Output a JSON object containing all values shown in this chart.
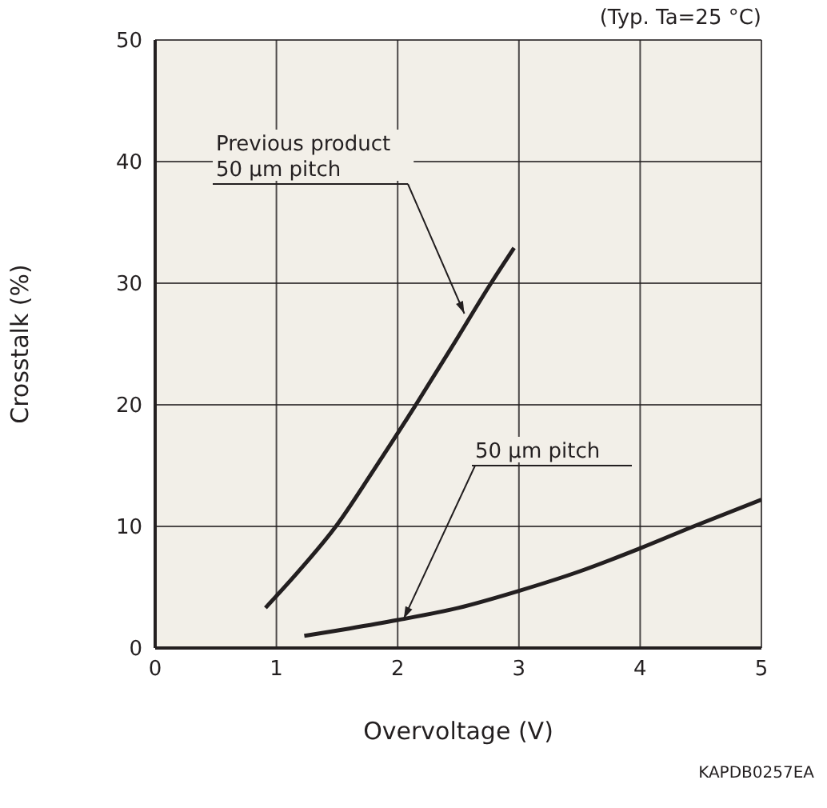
{
  "chart_data": {
    "type": "line",
    "xlabel": "Overvoltage (V)",
    "ylabel": "Crosstalk (%)",
    "xlim": [
      0,
      5
    ],
    "xticks": [
      0,
      1,
      2,
      3,
      4,
      5
    ],
    "ylim": [
      0,
      50
    ],
    "yticks": [
      0,
      10,
      20,
      30,
      40,
      50
    ],
    "grid": true,
    "marker": "none",
    "line_style": "solid",
    "series": [
      {
        "color": "#231f20",
        "x": [
          0.91,
          1.2,
          1.49,
          1.8,
          2.15,
          2.45,
          2.77,
          2.96
        ],
        "values": [
          3.3,
          6.5,
          10,
          14.6,
          20,
          24.8,
          30,
          32.9
        ]
      },
      {
        "color": "#231f20",
        "x": [
          1.23,
          1.6,
          2,
          2.5,
          3,
          3.5,
          4,
          4.44,
          5
        ],
        "values": [
          1,
          1.6,
          2.3,
          3.3,
          4.7,
          6.3,
          8.2,
          10,
          12.2
        ]
      }
    ],
    "annotations": [
      {
        "text": "Previous product\n50 µm pitch",
        "x": 2.55,
        "y": 27.5
      },
      {
        "text": "50 µm pitch",
        "x": 2.05,
        "y": 2.4
      },
      "(Typ. Ta=25 °C)",
      "KAPDB0257EA"
    ]
  }
}
